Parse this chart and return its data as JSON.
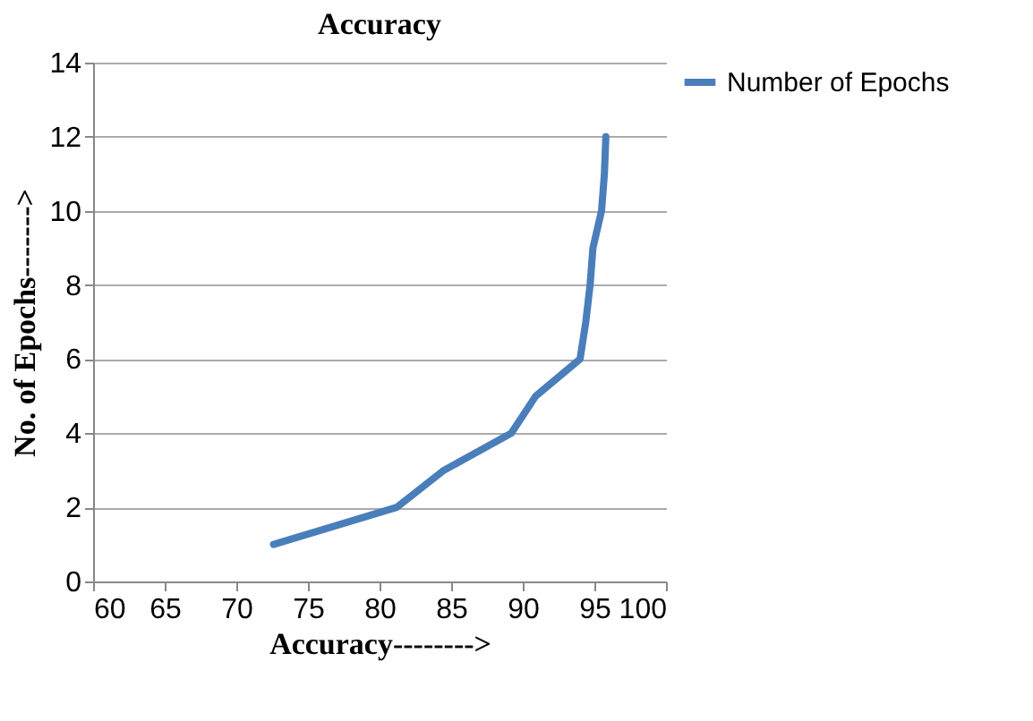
{
  "chart_data": {
    "type": "line",
    "title": "Accuracy",
    "xlabel": "Accuracy-------->",
    "ylabel": "No. of Epochs------->",
    "x": [
      72.6,
      81.2,
      84.5,
      89.2,
      90.9,
      94.0,
      94.4,
      94.7,
      94.9,
      95.5,
      95.7,
      95.8
    ],
    "series": [
      {
        "name": "Number of Epochs",
        "color": "#4a7ebb",
        "values": [
          1,
          2,
          3,
          4,
          5,
          6,
          7,
          8,
          9,
          10,
          11,
          12
        ]
      }
    ],
    "xlim": [
      60,
      100
    ],
    "xticks": [
      60,
      65,
      70,
      75,
      80,
      85,
      90,
      95,
      100
    ],
    "ylim": [
      0,
      14
    ],
    "yticks": [
      0,
      2,
      4,
      6,
      8,
      10,
      12,
      14
    ],
    "grid": "y",
    "legend": "right",
    "marker": "none",
    "line_style": "solid"
  }
}
